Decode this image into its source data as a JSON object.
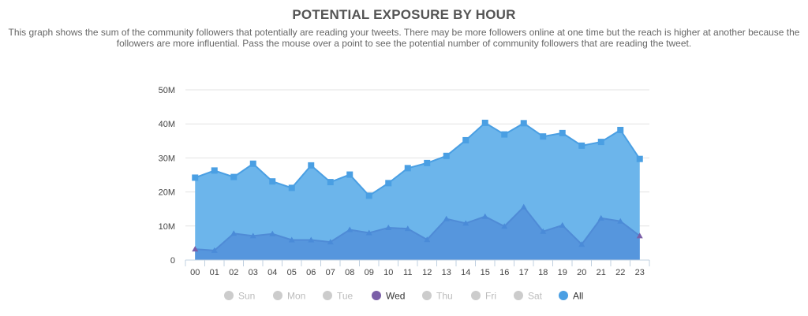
{
  "header": {
    "title": "POTENTIAL EXPOSURE BY HOUR",
    "subtitle": "This graph shows the sum of the community followers that potentially are reading your tweets. There may be more followers online at one time but the reach is higher at another because the followers are more influential. Pass the mouse over a point to see the potential number of community followers that are reading the tweet."
  },
  "chart_data": {
    "type": "area",
    "categories": [
      "00",
      "01",
      "02",
      "03",
      "04",
      "05",
      "06",
      "07",
      "08",
      "09",
      "10",
      "11",
      "12",
      "13",
      "14",
      "15",
      "16",
      "17",
      "18",
      "19",
      "20",
      "21",
      "22",
      "23"
    ],
    "yticks": [
      "0",
      "10M",
      "20M",
      "30M",
      "40M",
      "50M"
    ],
    "ylim": [
      0,
      50000000
    ],
    "grid": true,
    "legend_position": "bottom",
    "series": [
      {
        "name": "All",
        "color": "#4a9fe3",
        "visible": true,
        "marker": "square",
        "values": [
          24200000,
          26300000,
          24400000,
          28300000,
          23100000,
          21200000,
          27800000,
          22900000,
          25100000,
          18900000,
          22600000,
          27000000,
          28500000,
          30600000,
          35200000,
          40300000,
          36900000,
          40200000,
          36300000,
          37300000,
          33600000,
          34700000,
          38200000,
          29700000
        ]
      },
      {
        "name": "Wed",
        "color": "#5b8fd6",
        "visible": true,
        "marker": "triangle",
        "values": [
          3200000,
          2800000,
          7800000,
          7100000,
          7700000,
          5900000,
          5900000,
          5300000,
          8900000,
          8000000,
          9500000,
          9200000,
          6000000,
          12100000,
          10800000,
          12800000,
          9900000,
          15600000,
          8400000,
          10200000,
          4600000,
          12300000,
          11400000,
          7100000
        ]
      }
    ],
    "legend": [
      {
        "label": "Sun",
        "color": "#cccccc",
        "active": false
      },
      {
        "label": "Mon",
        "color": "#cccccc",
        "active": false
      },
      {
        "label": "Tue",
        "color": "#cccccc",
        "active": false
      },
      {
        "label": "Wed",
        "color": "#7b5fa8",
        "active": true
      },
      {
        "label": "Thu",
        "color": "#cccccc",
        "active": false
      },
      {
        "label": "Fri",
        "color": "#cccccc",
        "active": false
      },
      {
        "label": "Sat",
        "color": "#cccccc",
        "active": false
      },
      {
        "label": "All",
        "color": "#4a9fe3",
        "active": true
      }
    ]
  }
}
